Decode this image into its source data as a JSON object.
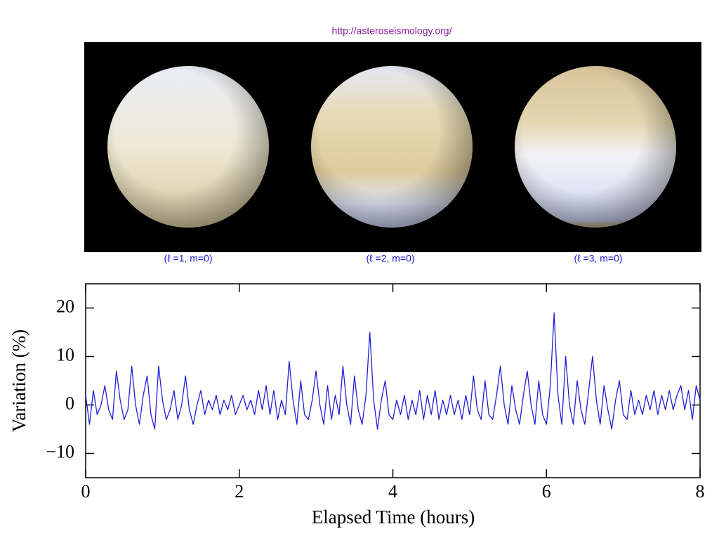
{
  "header": {
    "url": "http://asteroseismology.org/"
  },
  "sphere_labels": [
    "(ℓ =1, m=0)",
    "(ℓ =2, m=0)",
    "(ℓ =3, m=0)"
  ],
  "chart_data": {
    "type": "line",
    "x_label": "Elapsed Time (hours)",
    "y_label": "Variation (%)",
    "color": "#1f1fd6",
    "xlim": [
      0,
      8
    ],
    "xticks": [
      0,
      2,
      4,
      6,
      8
    ],
    "ylim": [
      -15,
      25
    ],
    "yticks": [
      {
        "value": -10,
        "label": "−10"
      },
      0,
      10,
      20
    ],
    "x": [
      0,
      0.05,
      0.1,
      0.15,
      0.2,
      0.25,
      0.3,
      0.35,
      0.4,
      0.45,
      0.5,
      0.55,
      0.6,
      0.65,
      0.7,
      0.75,
      0.8,
      0.85,
      0.9,
      0.95,
      1,
      1.05,
      1.1,
      1.15,
      1.2,
      1.25,
      1.3,
      1.35,
      1.4,
      1.45,
      1.5,
      1.55,
      1.6,
      1.65,
      1.7,
      1.75,
      1.8,
      1.85,
      1.9,
      1.95,
      2,
      2.05,
      2.1,
      2.15,
      2.2,
      2.25,
      2.3,
      2.35,
      2.4,
      2.45,
      2.5,
      2.55,
      2.6,
      2.65,
      2.7,
      2.75,
      2.8,
      2.85,
      2.9,
      2.95,
      3,
      3.05,
      3.1,
      3.15,
      3.2,
      3.25,
      3.3,
      3.35,
      3.4,
      3.45,
      3.5,
      3.55,
      3.6,
      3.65,
      3.7,
      3.75,
      3.8,
      3.85,
      3.9,
      3.95,
      4,
      4.05,
      4.1,
      4.15,
      4.2,
      4.25,
      4.3,
      4.35,
      4.4,
      4.45,
      4.5,
      4.55,
      4.6,
      4.65,
      4.7,
      4.75,
      4.8,
      4.85,
      4.9,
      4.95,
      5,
      5.05,
      5.1,
      5.15,
      5.2,
      5.25,
      5.3,
      5.35,
      5.4,
      5.45,
      5.5,
      5.55,
      5.6,
      5.65,
      5.7,
      5.75,
      5.8,
      5.85,
      5.9,
      5.95,
      6,
      6.05,
      6.1,
      6.15,
      6.2,
      6.25,
      6.3,
      6.35,
      6.4,
      6.45,
      6.5,
      6.55,
      6.6,
      6.65,
      6.7,
      6.75,
      6.8,
      6.85,
      6.9,
      6.95,
      7,
      7.05,
      7.1,
      7.15,
      7.2,
      7.25,
      7.3,
      7.35,
      7.4,
      7.45,
      7.5,
      7.55,
      7.6,
      7.65,
      7.7,
      7.75,
      7.8,
      7.85,
      7.9,
      7.95,
      8
    ],
    "values": [
      2,
      -4,
      3,
      -2,
      0,
      4,
      -1,
      -3,
      7,
      1,
      -3,
      -1,
      8,
      0,
      -4,
      2,
      6,
      -2,
      -5,
      8,
      1,
      -3,
      -1,
      3,
      -3,
      0,
      6,
      -1,
      -4,
      0,
      3,
      -2,
      1,
      -1,
      2,
      -2,
      1,
      -1,
      2,
      -2,
      0,
      2,
      -1,
      1,
      -2,
      3,
      -1,
      4,
      -2,
      3,
      -3,
      1,
      -2,
      9,
      1,
      -4,
      5,
      -2,
      -3,
      1,
      7,
      0,
      -4,
      4,
      -3,
      2,
      -2,
      8,
      0,
      -4,
      6,
      -1,
      -4,
      2,
      15,
      1,
      -5,
      1,
      5,
      -2,
      -3,
      1,
      -2,
      2,
      -3,
      1,
      -2,
      3,
      -3,
      2,
      -2,
      3,
      -3,
      1,
      -2,
      2,
      -2,
      1,
      -3,
      2,
      -2,
      6,
      -1,
      -3,
      5,
      -2,
      -3,
      2,
      8,
      0,
      -4,
      4,
      -1,
      -4,
      2,
      7,
      0,
      -4,
      5,
      -2,
      -4,
      4,
      19,
      2,
      -4,
      10,
      0,
      -4,
      5,
      -1,
      -4,
      3,
      10,
      1,
      -4,
      4,
      -1,
      -5,
      1,
      5,
      -2,
      -3,
      3,
      -2,
      1,
      -2,
      2,
      -1,
      3,
      -2,
      2,
      -1,
      3,
      -1,
      2,
      4,
      -1,
      3,
      -3,
      4,
      1
    ]
  }
}
